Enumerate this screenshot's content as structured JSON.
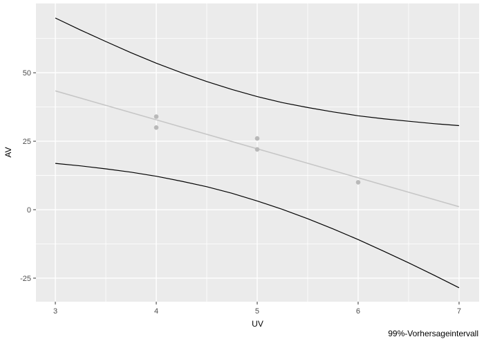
{
  "chart_data": {
    "type": "line",
    "title": "",
    "xlabel": "UV",
    "ylabel": "AV",
    "caption": "99%-Vorhersageintervall",
    "xlim": [
      2.808,
      7.199
    ],
    "ylim": [
      -33.6,
      75.3
    ],
    "x_ticks": [
      3,
      4,
      5,
      6,
      7
    ],
    "y_ticks": [
      -25,
      0,
      25,
      50
    ],
    "minor_x": [
      3.5,
      4.5,
      5.5,
      6.5
    ],
    "minor_y": [
      -12.5,
      12.5,
      37.5,
      62.5
    ],
    "grid": "on",
    "legend": "none",
    "colors": {
      "panel_bg": "#ebebeb",
      "gridline": "#ffffff",
      "tick_mark": "#333333",
      "tick_label": "#4d4d4d",
      "interval_line": "#000000",
      "regression_line": "#c6c6c6",
      "point": "#b9b9b9"
    },
    "series": [
      {
        "name": "prediction-interval-upper",
        "kind": "line",
        "color": "#000000",
        "x": [
          3,
          3.25,
          3.5,
          3.75,
          4,
          4.25,
          4.5,
          4.75,
          5,
          5.25,
          5.5,
          5.75,
          6,
          6.25,
          6.5,
          6.75,
          7
        ],
        "y": [
          70.0,
          65.6,
          61.4,
          57.3,
          53.5,
          50.0,
          46.8,
          43.9,
          41.3,
          39.1,
          37.3,
          35.7,
          34.3,
          33.2,
          32.3,
          31.4,
          30.7
        ]
      },
      {
        "name": "prediction-interval-lower",
        "kind": "line",
        "color": "#000000",
        "x": [
          3,
          3.25,
          3.5,
          3.75,
          4,
          4.25,
          4.5,
          4.75,
          5,
          5.25,
          5.5,
          5.75,
          6,
          6.25,
          6.5,
          6.75,
          7
        ],
        "y": [
          16.9,
          16.0,
          14.9,
          13.7,
          12.2,
          10.4,
          8.4,
          6.0,
          3.2,
          0.1,
          -3.3,
          -7.0,
          -10.9,
          -15.1,
          -19.4,
          -23.9,
          -28.5
        ]
      },
      {
        "name": "regression-line",
        "kind": "line",
        "color": "#c6c6c6",
        "x": [
          3,
          7
        ],
        "y": [
          43.4,
          1.1
        ]
      },
      {
        "name": "observations",
        "kind": "scatter",
        "color": "#b9b9b9",
        "points": [
          [
            4,
            34
          ],
          [
            4,
            30
          ],
          [
            5,
            26
          ],
          [
            5,
            22
          ],
          [
            6,
            10
          ]
        ]
      }
    ]
  }
}
